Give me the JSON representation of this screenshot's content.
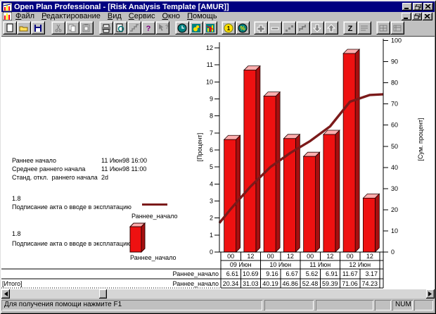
{
  "window": {
    "title": "Open Plan Professional - [Risk Analysis Template [AMUR]]"
  },
  "menu": {
    "items": [
      "Файл",
      "Редактирование",
      "Вид",
      "Сервис",
      "Окно",
      "Помощь"
    ]
  },
  "toolbar": {
    "buttons": [
      "new-document",
      "open-project",
      "save",
      "cut",
      "copy",
      "paste",
      "print",
      "print-preview",
      "rollup",
      "help",
      "context-help",
      "time-analysis",
      "early-bird",
      "risk-analysis",
      "cost",
      "percent-complete",
      "add",
      "remove",
      "link",
      "step",
      "move-down",
      "move-up",
      "sort-z",
      "outline",
      "window-tile",
      "window-cascade"
    ]
  },
  "info_panel": {
    "stats": [
      {
        "label": "Раннее начало",
        "value": "11 Июн98 16:00"
      },
      {
        "label": "Среднее раннего начала",
        "value": "11 Июн98 11:00"
      },
      {
        "label": "Станд. откл.  раннего начала",
        "value": "2d"
      }
    ],
    "legends": [
      {
        "value": "1.8",
        "activity": "Подписание акта о вводе в эксплатацию",
        "swatch": "line",
        "caption": "Раннее_начало"
      },
      {
        "value": "1.8",
        "activity": "Подписание акта о вводе в эксплатацию",
        "swatch": "bar",
        "caption": "Раннее_начало"
      }
    ]
  },
  "chart_data": {
    "type": "bar",
    "categories": [
      "00",
      "12",
      "00",
      "12",
      "00",
      "12",
      "00",
      "12"
    ],
    "category_groups": [
      "09 Июн",
      "10 Июн",
      "11 Июн",
      "12 Июн"
    ],
    "series": [
      {
        "name": "Раннее_начало",
        "type": "bar",
        "axis": "left",
        "values": [
          6.61,
          10.69,
          9.16,
          6.67,
          5.62,
          6.91,
          11.67,
          3.17
        ]
      },
      {
        "name": "Раннее_начало",
        "type": "line",
        "axis": "right",
        "values": [
          20.34,
          31.03,
          40.19,
          46.86,
          52.48,
          59.39,
          71.06,
          74.23
        ]
      }
    ],
    "ylabel_left": "[Процент]",
    "ylim_left": [
      0,
      12
    ],
    "ytick_left": 1,
    "ylabel_right": "[Сум. процент]",
    "ylim_right": [
      0,
      100
    ],
    "ytick_right": 10,
    "grid": false,
    "legend_position": "left",
    "table": {
      "per_period_label": "Раннее_начало",
      "cumulative_label": "Раннее_начало",
      "total_label": "[Итого]"
    },
    "colors": {
      "bar_front": "#ee1111",
      "bar_top": "#ffadad",
      "bar_side": "#a81010",
      "line": "#7b1a1a"
    }
  },
  "status_bar": {
    "message": "Для получения помощи нажмите F1",
    "num": "NUM"
  }
}
